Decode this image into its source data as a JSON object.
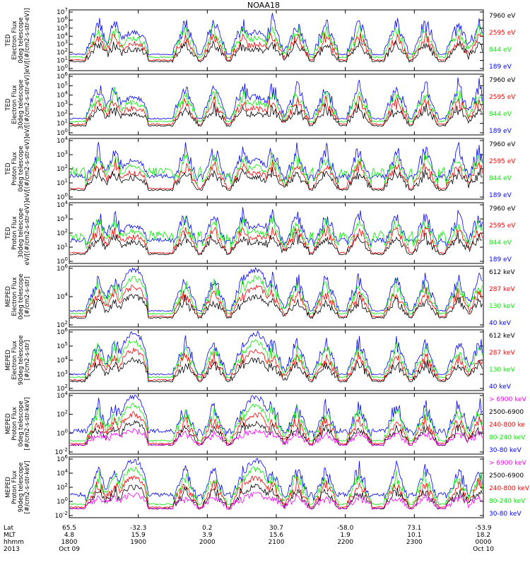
{
  "title": "NOAA18",
  "colors": {
    "blue": "#0000ff",
    "red": "#ff0000",
    "green": "#00ee00",
    "black": "#000000",
    "magenta": "#ff00ff"
  },
  "panels": [
    {
      "ylabel": [
        "TED",
        "Electron Flux",
        "0deg telescope",
        "eV/[(#/cm2-s-str-eV)]"
      ],
      "yticks": [
        "10^7",
        "10^6",
        "10^5",
        "10^4",
        "10^3",
        "10^2",
        "10^1",
        "10^0"
      ],
      "legend": [
        {
          "text": "7960 eV",
          "color": "black"
        },
        {
          "text": "2595 eV",
          "color": "red"
        },
        {
          "text": "844 eV",
          "color": "green"
        },
        {
          "text": "189 eV",
          "color": "blue"
        }
      ]
    },
    {
      "ylabel": [
        "TED",
        "Electron Flux",
        "30deg telescope",
        "eV/[(#/cm2-s-str-eV)]"
      ],
      "yticks": [
        "10^6",
        "10^5",
        "10^4",
        "10^3",
        "10^2",
        "10^1",
        "10^0"
      ],
      "legend": [
        {
          "text": "7960 eV",
          "color": "black"
        },
        {
          "text": "2595 eV",
          "color": "red"
        },
        {
          "text": "844 eV",
          "color": "green"
        },
        {
          "text": "189 eV",
          "color": "blue"
        }
      ]
    },
    {
      "ylabel": [
        "TED",
        "Proton Flux",
        "0deg telescope",
        "eV/[(#/cm2-s-str-eV)]"
      ],
      "yticks": [
        "10^4",
        "10^3",
        "10^2",
        "10^1",
        "10^0"
      ],
      "legend": [
        {
          "text": "7960 eV",
          "color": "black"
        },
        {
          "text": "2595 eV",
          "color": "red"
        },
        {
          "text": "844 eV",
          "color": "green"
        },
        {
          "text": "189 eV",
          "color": "blue"
        }
      ]
    },
    {
      "ylabel": [
        "TED",
        "Proton Flux",
        "30deg telescope",
        "eV/[(#/cm2-s-str-eV)]"
      ],
      "yticks": [
        "10^4",
        "10^3",
        "10^2",
        "10^1",
        "10^0"
      ],
      "legend": [
        {
          "text": "7960 eV",
          "color": "black"
        },
        {
          "text": "2595 eV",
          "color": "red"
        },
        {
          "text": "844 eV",
          "color": "green"
        },
        {
          "text": "189 eV",
          "color": "blue"
        }
      ]
    },
    {
      "ylabel": [
        "MEPED",
        "Electron Flux",
        "0deg telescope",
        "[#/cm2-s-str]"
      ],
      "yticks": [
        "10^6",
        "10^4",
        "10^2"
      ],
      "legend": [
        {
          "text": "612 keV",
          "color": "black"
        },
        {
          "text": "287 keV",
          "color": "red"
        },
        {
          "text": "130 keV",
          "color": "green"
        },
        {
          "text": "40 keV",
          "color": "blue"
        }
      ]
    },
    {
      "ylabel": [
        "MEPED",
        "Electron Flux",
        "90deg telescope",
        "[#/cm2-s-str]"
      ],
      "yticks": [
        "10^6",
        "10^5",
        "10^4",
        "10^3",
        "10^2"
      ],
      "legend": [
        {
          "text": "612 keV",
          "color": "black"
        },
        {
          "text": "287 keV",
          "color": "red"
        },
        {
          "text": "130 keV",
          "color": "green"
        },
        {
          "text": "40 keV",
          "color": "blue"
        }
      ]
    },
    {
      "ylabel": [
        "MEPED",
        "Proton Flux",
        "0deg telescope",
        "[#/cm2-s-str-keV]"
      ],
      "yticks": [
        "10^4",
        "10^2",
        "10^0",
        "10^-2"
      ],
      "legend": [
        {
          "text": "> 6900 keV",
          "color": "magenta"
        },
        {
          "text": "2500-6900",
          "color": "black"
        },
        {
          "text": "240-800 ke",
          "color": "red"
        },
        {
          "text": "80-240 keV",
          "color": "green"
        },
        {
          "text": "30-80 keV",
          "color": "blue"
        }
      ]
    },
    {
      "ylabel": [
        "MEPED",
        "Proton Flux",
        "90deg telescope",
        "[#/cm2-s-str-keV]"
      ],
      "yticks": [
        "10^6",
        "10^4",
        "10^2",
        "10^0",
        "10^-2"
      ],
      "legend": [
        {
          "text": "> 6900 keV",
          "color": "magenta"
        },
        {
          "text": "2500-6900",
          "color": "black"
        },
        {
          "text": "240-800 keV",
          "color": "red"
        },
        {
          "text": "80-240 keV",
          "color": "green"
        },
        {
          "text": "30-80 keV",
          "color": "blue"
        }
      ]
    }
  ],
  "xaxis": {
    "row_labels": [
      "Lat",
      "MLT",
      "hhmm",
      "2013"
    ],
    "ticks": [
      {
        "lat": "65.5",
        "mlt": "4.8",
        "hhmm": "1800",
        "date": "Oct 09"
      },
      {
        "lat": "-32.3",
        "mlt": "15.9",
        "hhmm": "1900",
        "date": ""
      },
      {
        "lat": "0.2",
        "mlt": "3.9",
        "hhmm": "2000",
        "date": ""
      },
      {
        "lat": "30.7",
        "mlt": "15.6",
        "hhmm": "2100",
        "date": ""
      },
      {
        "lat": "-58.0",
        "mlt": "1.9",
        "hhmm": "2200",
        "date": ""
      },
      {
        "lat": "73.1",
        "mlt": "10.1",
        "hhmm": "2300",
        "date": ""
      },
      {
        "lat": "-53.9",
        "mlt": "18.2",
        "hhmm": "0000",
        "date": "Oct 10"
      }
    ]
  },
  "chart_data": {
    "type": "line",
    "title": "NOAA18",
    "x_range": [
      "1800",
      "0000"
    ],
    "yscale": "log",
    "panels_count": 8,
    "grid": false
  }
}
